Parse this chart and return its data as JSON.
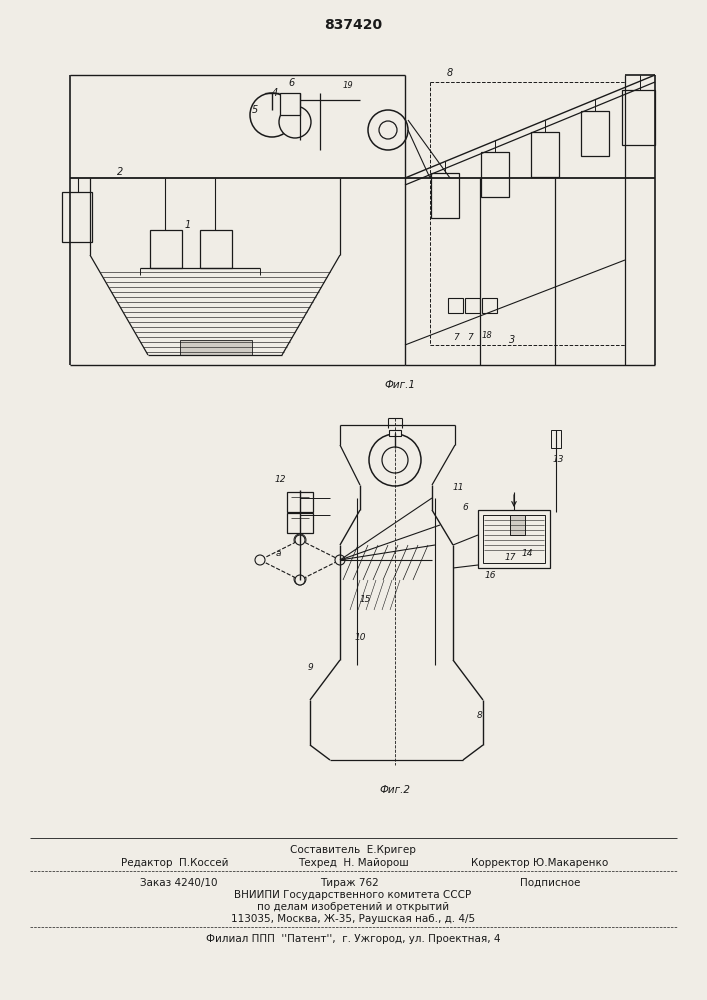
{
  "patent_number": "837420",
  "bg_color": "#f0ede6",
  "line_color": "#1a1a1a",
  "fig1_label": "Фиг.1",
  "fig2_label": "Фиг.2",
  "footer": {
    "line1": "Составитель  Е.Кригер",
    "line2a": "Редактор  П.Коссей",
    "line2b": "Техред  Н. Майорош",
    "line2c": "Корректор Ю.Макаренко",
    "line3a": "Заказ 4240/10",
    "line3b": "Тираж 762",
    "line3c": "Подписное",
    "line4": "ВНИИПИ Государственного комитета СССР",
    "line5": "по делам изобретений и открытий",
    "line6": "113035, Москва, Ж-35, Раушская наб., д. 4/5",
    "line7": "Филиал ППП  ''Патент'',  г. Ужгород, ул. Проектная, 4"
  }
}
